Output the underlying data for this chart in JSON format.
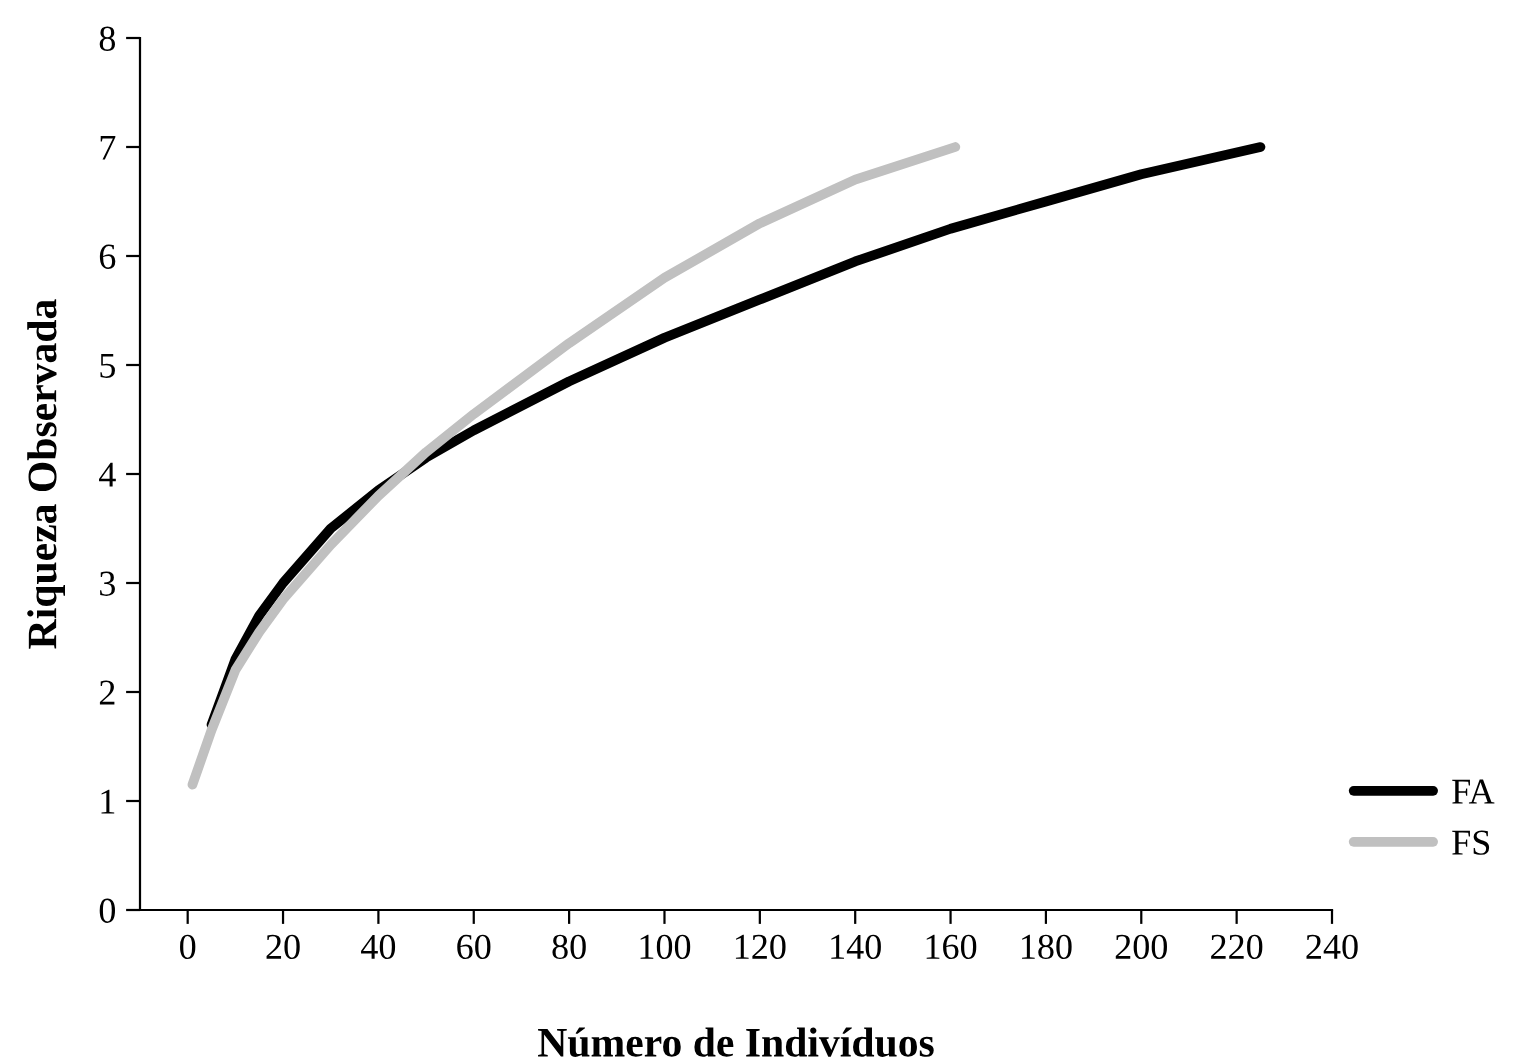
{
  "chart_data": {
    "type": "line",
    "xlabel": "Número de Indivíduos",
    "ylabel": "Riqueza Observada",
    "xlim": [
      -10,
      240
    ],
    "xticks": [
      0,
      20,
      40,
      60,
      80,
      100,
      120,
      140,
      160,
      180,
      200,
      220,
      240
    ],
    "ylim": [
      0,
      8
    ],
    "yticks": [
      0,
      1,
      2,
      3,
      4,
      5,
      6,
      7,
      8
    ],
    "grid": false,
    "legend": "bottom right",
    "marker": "none",
    "line_style": "solid",
    "series": [
      {
        "name": "FA",
        "color": "#000000",
        "x": [
          5,
          10,
          15,
          20,
          30,
          40,
          50,
          60,
          80,
          100,
          120,
          140,
          160,
          180,
          200,
          225
        ],
        "values": [
          1.7,
          2.3,
          2.7,
          3.0,
          3.5,
          3.85,
          4.15,
          4.4,
          4.85,
          5.25,
          5.6,
          5.95,
          6.25,
          6.5,
          6.75,
          7.0
        ]
      },
      {
        "name": "FS",
        "color": "#c0c0c0",
        "x": [
          1,
          5,
          10,
          15,
          20,
          30,
          40,
          50,
          60,
          80,
          100,
          120,
          140,
          161
        ],
        "values": [
          1.15,
          1.65,
          2.2,
          2.55,
          2.85,
          3.35,
          3.8,
          4.2,
          4.55,
          5.2,
          5.8,
          6.3,
          6.7,
          7.0
        ]
      }
    ]
  }
}
